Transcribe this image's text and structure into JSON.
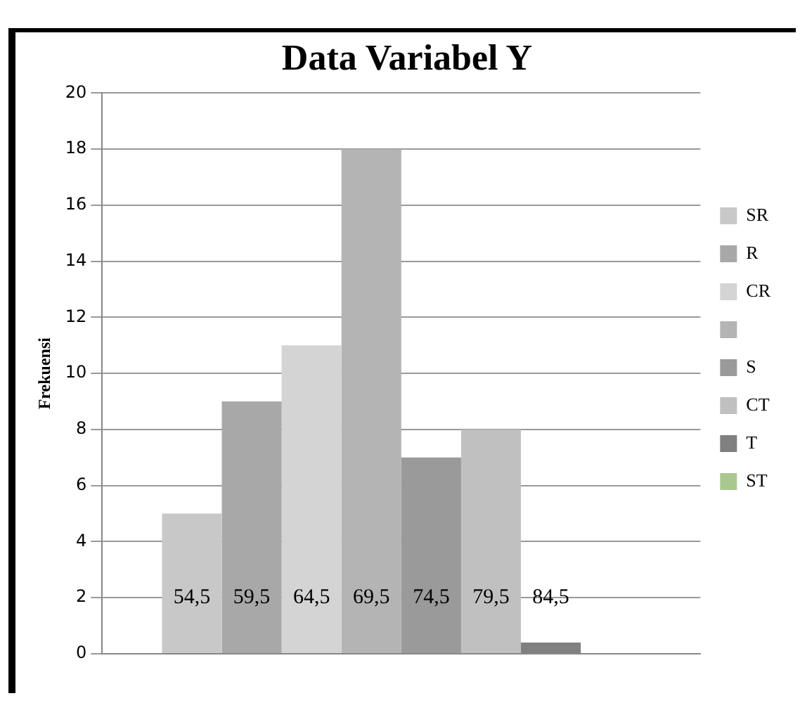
{
  "chart_data": {
    "type": "bar",
    "title": "Data Variabel Y",
    "ylabel": "Frekuensi",
    "categories": [
      null
    ],
    "series": [
      {
        "name": "SR",
        "color": "#c8c8c8",
        "values": [
          5
        ]
      },
      {
        "name": "R",
        "color": "#a8a8a8",
        "values": [
          9
        ]
      },
      {
        "name": "CR",
        "color": "#d4d4d4",
        "values": [
          11
        ]
      },
      {
        "color": "#b4b4b4",
        "values": [
          18
        ]
      },
      {
        "name": "S",
        "color": "#9a9a9a",
        "values": [
          7
        ]
      },
      {
        "name": "CT",
        "color": "#c0c0c0",
        "values": [
          8
        ]
      },
      {
        "name": "T",
        "color": "#808080",
        "values": [
          0.4
        ]
      },
      {
        "name": "ST",
        "color": "#a9c88f",
        "values": [
          0
        ]
      }
    ],
    "annotations": [
      "54,5",
      "59,5",
      "64,5",
      "69,5",
      "74,5",
      "79,5",
      "84,5"
    ],
    "ylim": [
      0,
      20
    ],
    "yticks": [
      0,
      2,
      4,
      6,
      8,
      10,
      12,
      14,
      16,
      18,
      20
    ],
    "grid": "y",
    "legend": "right"
  }
}
